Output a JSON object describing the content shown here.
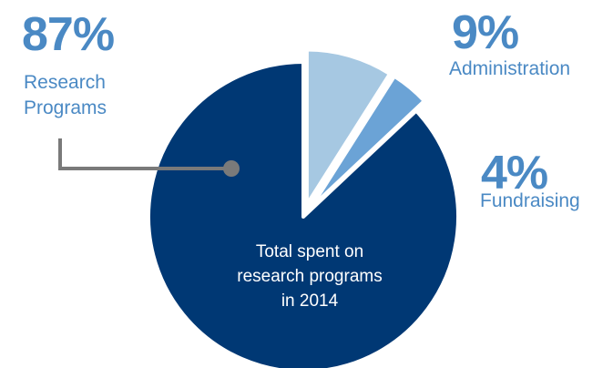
{
  "chart_data": {
    "type": "pie",
    "slices": [
      {
        "percent_label": "87%",
        "value": 87,
        "label_lines": [
          "Research",
          "Programs"
        ],
        "color": "#003874"
      },
      {
        "percent_label": "9%",
        "value": 9,
        "label_lines": [
          "Administration"
        ],
        "color": "#a6c8e2"
      },
      {
        "percent_label": "4%",
        "value": 4,
        "label_lines": [
          "Fundraising"
        ],
        "color": "#6ba3d6"
      }
    ],
    "center_text_lines": [
      "Total spent on",
      "research programs",
      "in 2014"
    ],
    "colors": {
      "label": "#4a89c4",
      "connector": "#7a7a7a",
      "center_text": "#ffffff"
    }
  }
}
